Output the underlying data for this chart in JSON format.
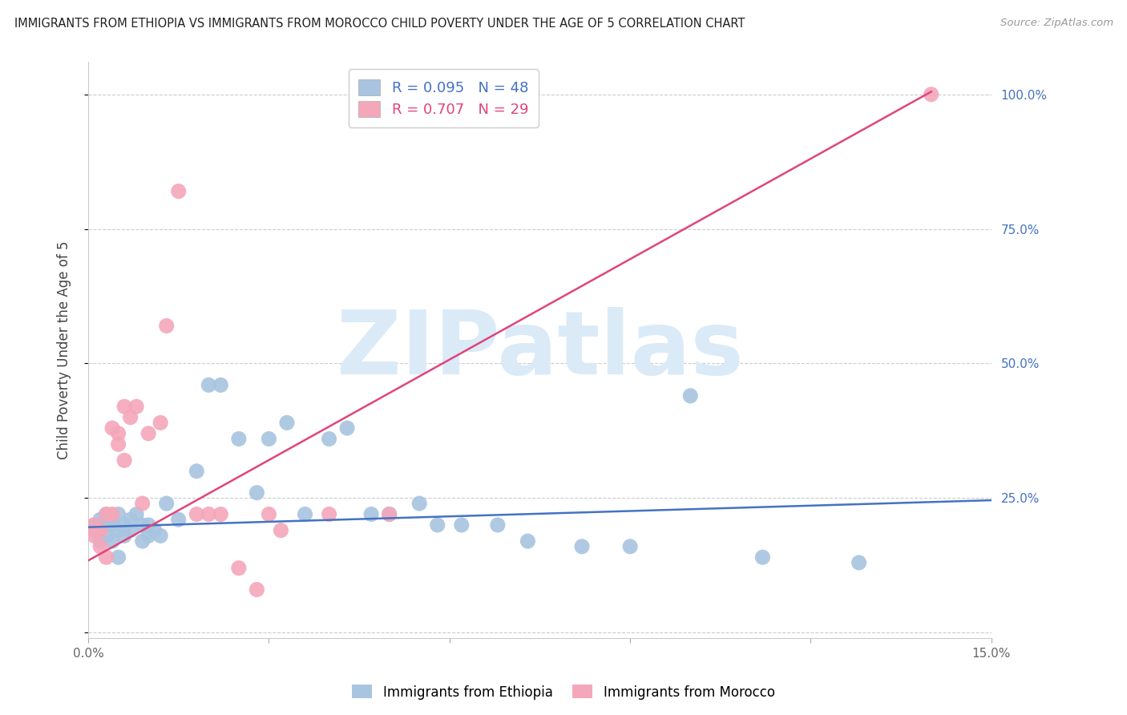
{
  "title": "IMMIGRANTS FROM ETHIOPIA VS IMMIGRANTS FROM MOROCCO CHILD POVERTY UNDER THE AGE OF 5 CORRELATION CHART",
  "source": "Source: ZipAtlas.com",
  "ylabel": "Child Poverty Under the Age of 5",
  "xlim": [
    0.0,
    0.15
  ],
  "ylim": [
    -0.01,
    1.06
  ],
  "yticks": [
    0.0,
    0.25,
    0.5,
    0.75,
    1.0
  ],
  "ytick_labels": [
    "",
    "25.0%",
    "50.0%",
    "75.0%",
    "100.0%"
  ],
  "xticks": [
    0.0,
    0.03,
    0.06,
    0.09,
    0.12,
    0.15
  ],
  "xtick_labels": [
    "0.0%",
    "",
    "",
    "",
    "",
    "15.0%"
  ],
  "ethiopia_R": 0.095,
  "ethiopia_N": 48,
  "morocco_R": 0.707,
  "morocco_N": 29,
  "ethiopia_color": "#a8c4e0",
  "ethiopia_line_color": "#4472c4",
  "morocco_color": "#f4a7b9",
  "morocco_line_color": "#e0457b",
  "legend_ethiopia_label": "Immigrants from Ethiopia",
  "legend_morocco_label": "Immigrants from Morocco",
  "watermark": "ZIPatlas",
  "watermark_color": "#daeaf7",
  "ethiopia_x": [
    0.001,
    0.001,
    0.002,
    0.002,
    0.003,
    0.003,
    0.003,
    0.004,
    0.004,
    0.004,
    0.005,
    0.005,
    0.005,
    0.006,
    0.006,
    0.007,
    0.007,
    0.008,
    0.009,
    0.009,
    0.01,
    0.01,
    0.011,
    0.012,
    0.013,
    0.015,
    0.018,
    0.02,
    0.022,
    0.025,
    0.028,
    0.03,
    0.033,
    0.036,
    0.04,
    0.043,
    0.047,
    0.05,
    0.055,
    0.058,
    0.062,
    0.068,
    0.073,
    0.082,
    0.09,
    0.1,
    0.112,
    0.128
  ],
  "ethiopia_y": [
    0.2,
    0.19,
    0.21,
    0.17,
    0.2,
    0.18,
    0.22,
    0.2,
    0.17,
    0.21,
    0.22,
    0.19,
    0.14,
    0.2,
    0.18,
    0.21,
    0.19,
    0.22,
    0.17,
    0.2,
    0.2,
    0.18,
    0.19,
    0.18,
    0.24,
    0.21,
    0.3,
    0.46,
    0.46,
    0.36,
    0.26,
    0.36,
    0.39,
    0.22,
    0.36,
    0.38,
    0.22,
    0.22,
    0.24,
    0.2,
    0.2,
    0.2,
    0.17,
    0.16,
    0.16,
    0.44,
    0.14,
    0.13
  ],
  "morocco_x": [
    0.001,
    0.001,
    0.002,
    0.002,
    0.003,
    0.003,
    0.004,
    0.004,
    0.005,
    0.005,
    0.006,
    0.006,
    0.007,
    0.008,
    0.009,
    0.01,
    0.012,
    0.013,
    0.015,
    0.018,
    0.02,
    0.022,
    0.025,
    0.028,
    0.03,
    0.032,
    0.04,
    0.05,
    0.14
  ],
  "morocco_y": [
    0.2,
    0.18,
    0.19,
    0.16,
    0.22,
    0.14,
    0.38,
    0.22,
    0.37,
    0.35,
    0.32,
    0.42,
    0.4,
    0.42,
    0.24,
    0.37,
    0.39,
    0.57,
    0.82,
    0.22,
    0.22,
    0.22,
    0.12,
    0.08,
    0.22,
    0.19,
    0.22,
    0.22,
    1.0
  ],
  "eth_line_x": [
    0.0,
    0.15
  ],
  "eth_line_y": [
    0.196,
    0.246
  ],
  "mor_line_x": [
    0.0,
    0.14
  ],
  "mor_line_y": [
    0.134,
    1.005
  ]
}
